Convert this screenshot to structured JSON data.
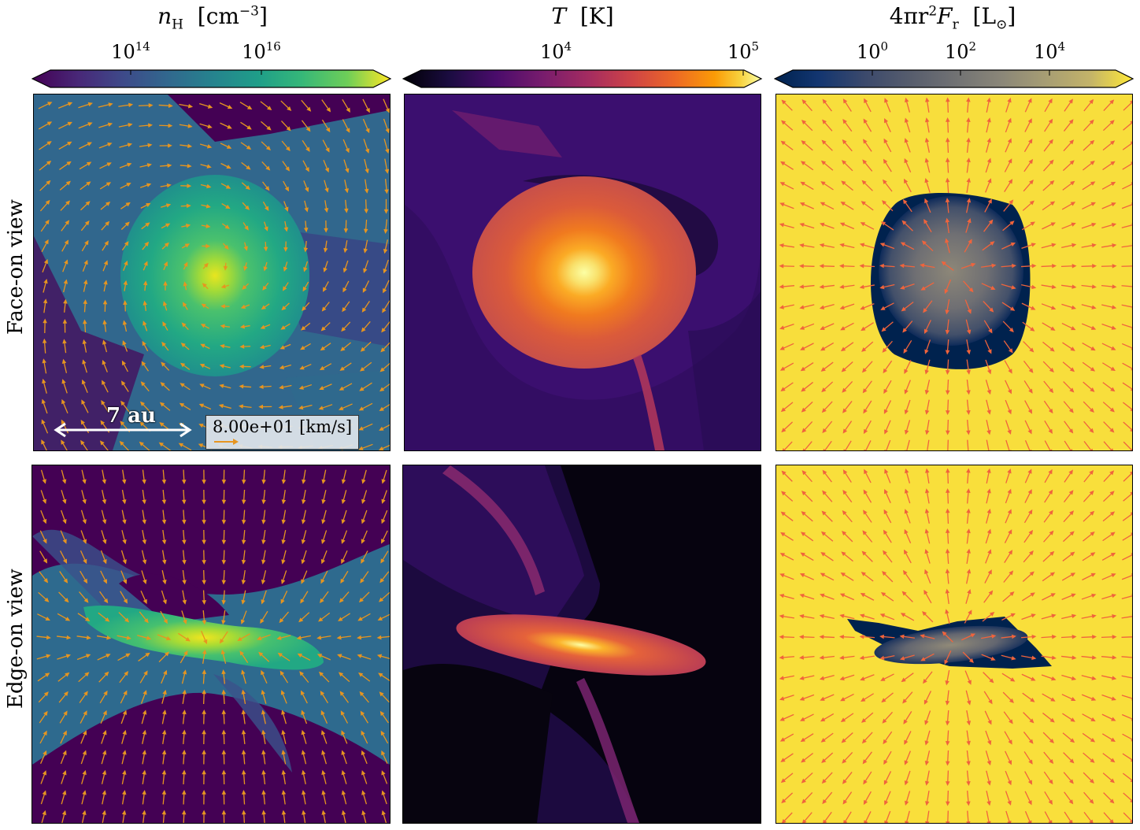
{
  "colorbars": {
    "density": {
      "title_var": "n",
      "title_sub": "H",
      "title_unit": "[cm",
      "title_exp": "−3",
      "title_close": "]",
      "ticks": [
        {
          "base": "10",
          "exp": "14"
        },
        {
          "base": "10",
          "exp": "16"
        }
      ]
    },
    "temperature": {
      "title_var": "T",
      "title_unit": "[K]",
      "ticks": [
        {
          "base": "10",
          "exp": "4"
        },
        {
          "base": "10",
          "exp": "5"
        }
      ]
    },
    "flux": {
      "title_pre": "4πr",
      "title_exp": "2",
      "title_var": "F",
      "title_sub": "r",
      "title_unit": "[L",
      "title_sun": "⊙",
      "title_close": "]",
      "ticks": [
        {
          "base": "10",
          "exp": "0"
        },
        {
          "base": "10",
          "exp": "2"
        },
        {
          "base": "10",
          "exp": "4"
        }
      ]
    }
  },
  "rows": {
    "face_on": "Face-on view",
    "edge_on": "Edge-on view"
  },
  "scale_bar": {
    "label": "7 au"
  },
  "velocity_legend": {
    "label": "8.00e+01 [km/s]"
  },
  "colors": {
    "viridis_low": "#440154",
    "viridis_mid": "#21918c",
    "viridis_high": "#fde725",
    "inferno_low": "#000004",
    "inferno_high": "#fcffa4",
    "cividis_low": "#00224e",
    "cividis_high": "#fee838",
    "velocity_arrow": "#e69520",
    "flux_arrow": "#f0643c"
  }
}
